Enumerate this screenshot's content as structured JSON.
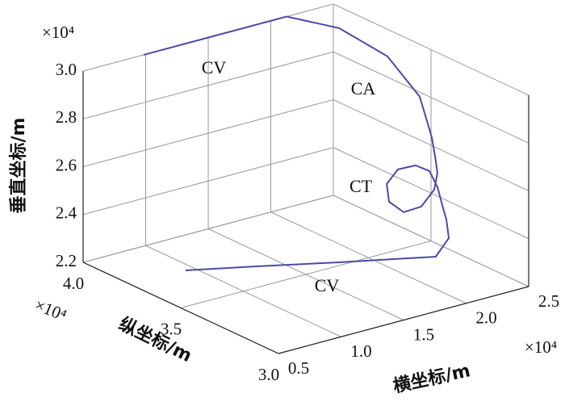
{
  "chart_data": {
    "type": "line3d",
    "xlabel": "横坐标/m",
    "ylabel": "纵坐标/m",
    "zlabel": "垂直坐标/m",
    "xmultiplier": "×10⁴",
    "ymultiplier": "×10⁴",
    "zmultiplier": "×10⁴",
    "xlim": [
      0.5,
      2.5
    ],
    "ylim": [
      3.0,
      4.0
    ],
    "zlim": [
      2.2,
      3.0
    ],
    "xticks": [
      0.5,
      {
        "value": 1.0,
        "label": "1.0"
      },
      1.5,
      {
        "value": 2.0,
        "label": "2.0"
      },
      2.5
    ],
    "yticks": [
      {
        "value": 3.0,
        "label": "3.0"
      },
      3.5,
      {
        "value": 4.0,
        "label": "4.0"
      }
    ],
    "zticks": [
      2.2,
      2.4,
      2.6,
      2.8,
      {
        "value": 3.0,
        "label": "3.0"
      }
    ],
    "grid": true,
    "color": "#4a4aa8",
    "x": [
      0.699,
      1.086,
      1.488,
      1.937,
      2.049,
      2.109,
      2.16,
      2.259,
      2.29,
      2.203,
      2.043,
      1.854,
      1.751,
      1.763,
      1.888,
      2.034,
      2.148,
      2.194,
      2.281,
      2.399,
      2.414,
      2.319,
      2.126,
      1.545,
      0.984
    ],
    "y": [
      3.603,
      3.479,
      3.323,
      3.115,
      3.12,
      3.171,
      3.224,
      3.312,
      3.374,
      3.389,
      3.377,
      3.313,
      3.235,
      3.168,
      3.158,
      3.185,
      3.242,
      3.279,
      3.356,
      3.493,
      3.668,
      3.855,
      4.0,
      4.0,
      4.0
    ],
    "z": [
      2.29,
      2.3,
      2.32,
      2.36,
      2.42,
      2.47,
      2.5,
      2.53,
      2.57,
      2.6,
      2.61,
      2.6,
      2.57,
      2.55,
      2.56,
      2.6,
      2.63,
      2.66,
      2.72,
      2.82,
      2.92,
      2.98,
      3.0,
      3.0,
      3.0
    ],
    "annotations": [
      "CV",
      "CA",
      "CT",
      "CV"
    ]
  }
}
